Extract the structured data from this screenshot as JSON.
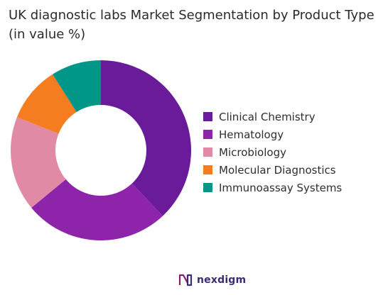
{
  "chart_data": {
    "type": "donut",
    "title": "UK diagnostic labs Market Segmentation by Product Type (in value %)",
    "categories": [
      "Clinical Chemistry",
      "Hematology",
      "Microbiology",
      "Molecular Diagnostics",
      "Immunoassay Systems"
    ],
    "values": [
      38,
      26,
      17,
      10,
      9
    ],
    "colors": [
      "#6a1b9a",
      "#8e24aa",
      "#e08aa6",
      "#f57c1f",
      "#009688"
    ],
    "legend_position": "right",
    "start_angle": "top",
    "direction": "clockwise"
  },
  "brand": {
    "name": "nexdigm"
  }
}
